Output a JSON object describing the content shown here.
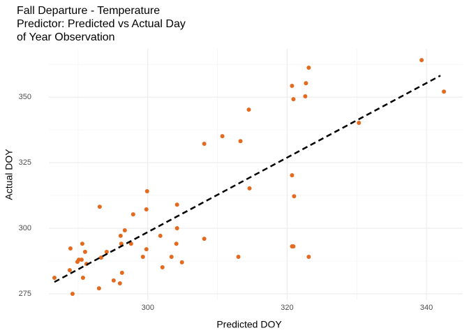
{
  "chart_data": {
    "type": "scatter",
    "title": [
      "Fall Departure - Temperature",
      "Predictor: Predicted vs Actual Day",
      "of Year Observation"
    ],
    "x_label": "Predicted DOY",
    "y_label": "Actual DOY",
    "color": "#e36a1e",
    "x": [
      286.6,
      288.9,
      288.8,
      289.2,
      289.9,
      290.1,
      290.5,
      290.6,
      291.0,
      290.7,
      291.2,
      293.0,
      293.1,
      293.3,
      294.1,
      295.1,
      296.1,
      296.0,
      296.3,
      296.2,
      296.7,
      297.6,
      297.9,
      299.3,
      299.8,
      299.8,
      299.9,
      301.8,
      302.1,
      303.4,
      304.1,
      304.2,
      304.2,
      304.9,
      308.1,
      308.1,
      310.7,
      313.0,
      313.3,
      314.5,
      314.6,
      320.7,
      320.9,
      320.7,
      320.9,
      320.7,
      321.0,
      322.6,
      322.7,
      323.1,
      323.1,
      330.3,
      339.3,
      342.5
    ],
    "values": [
      281.1,
      292.3,
      284.0,
      275.0,
      287.2,
      288.0,
      288.0,
      294.1,
      291.0,
      281.1,
      286.4,
      277.1,
      308.2,
      288.8,
      291.0,
      280.1,
      297.1,
      279.0,
      283.0,
      294.1,
      299.2,
      294.1,
      305.3,
      289.1,
      307.2,
      292.0,
      314.1,
      297.1,
      285.1,
      289.1,
      294.1,
      300.0,
      309.0,
      287.0,
      332.2,
      296.0,
      335.1,
      289.1,
      333.2,
      345.2,
      315.2,
      354.3,
      349.2,
      320.2,
      293.1,
      293.1,
      312.2,
      350.3,
      355.3,
      361.2,
      289.1,
      340.2,
      364.1,
      352.1
    ],
    "fit_line": {
      "x": [
        286.6,
        342.0
      ],
      "values": [
        279.5,
        358.2
      ],
      "color": "#000000",
      "dashed": true
    },
    "xlim": [
      285.8,
      345.2
    ],
    "ylim": [
      272.6,
      368.4
    ],
    "xticks": [
      300,
      320,
      340
    ],
    "yticks": [
      275,
      300,
      325,
      350
    ],
    "x_minor_ticks": [
      290,
      310,
      330
    ],
    "y_minor_ticks": [
      287.5,
      312.5,
      337.5,
      362.5
    ],
    "grid": true
  }
}
